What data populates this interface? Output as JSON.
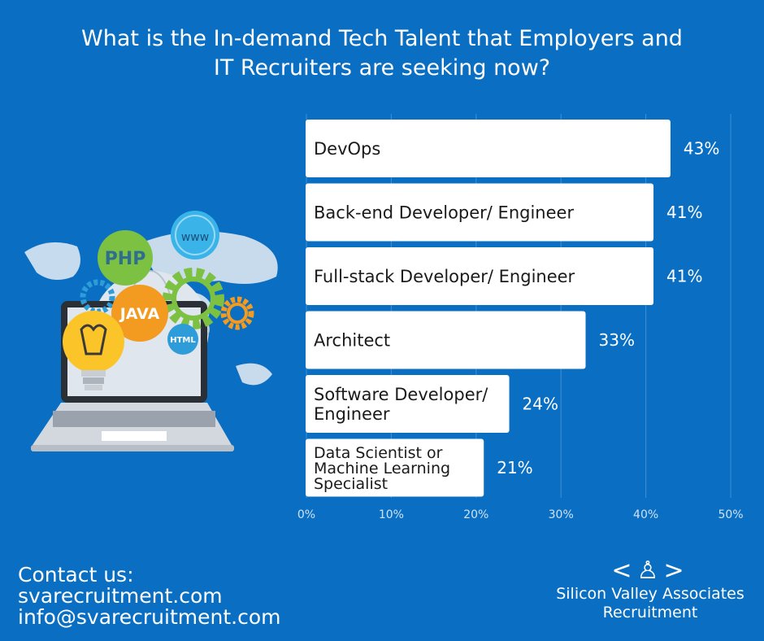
{
  "title_line1": "What is the In-demand Tech Talent that Employers and",
  "title_line2": "IT Recruiters are seeking now?",
  "chart_data": {
    "type": "bar",
    "orientation": "horizontal",
    "categories": [
      [
        "DevOps"
      ],
      [
        "Back-end Developer/ Engineer"
      ],
      [
        "Full-stack Developer/ Engineer"
      ],
      [
        "Architect"
      ],
      [
        "Software Developer/",
        "Engineer"
      ],
      [
        "Data Scientist or",
        "Machine Learning",
        "Specialist"
      ]
    ],
    "values": [
      43,
      41,
      41,
      33,
      24,
      21
    ],
    "value_labels": [
      "43%",
      "41%",
      "41%",
      "33%",
      "24%",
      "21%"
    ],
    "xticks": [
      "0%",
      "10%",
      "20%",
      "30%",
      "40%",
      "50%"
    ],
    "xlim": [
      0,
      50
    ],
    "grid": true,
    "bar_color": "#ffffff"
  },
  "illustration": {
    "php": "PHP",
    "www": "www",
    "java": "JAVA",
    "html": "HTML"
  },
  "contact": {
    "heading": "Contact us:",
    "website": "svarecruitment.com",
    "email": "info@svarecruitment.com"
  },
  "logo": {
    "mark": "<♙>",
    "name_line1": "Silicon Valley Associates",
    "name_line2": "Recruitment"
  },
  "colors": {
    "background": "#0a6fc2",
    "gear_green": "#7dc142",
    "java_orange": "#f39a21",
    "bulb_yellow": "#fbc52a",
    "www_blue": "#39b3e8",
    "html_blue": "#2d9cd8"
  }
}
